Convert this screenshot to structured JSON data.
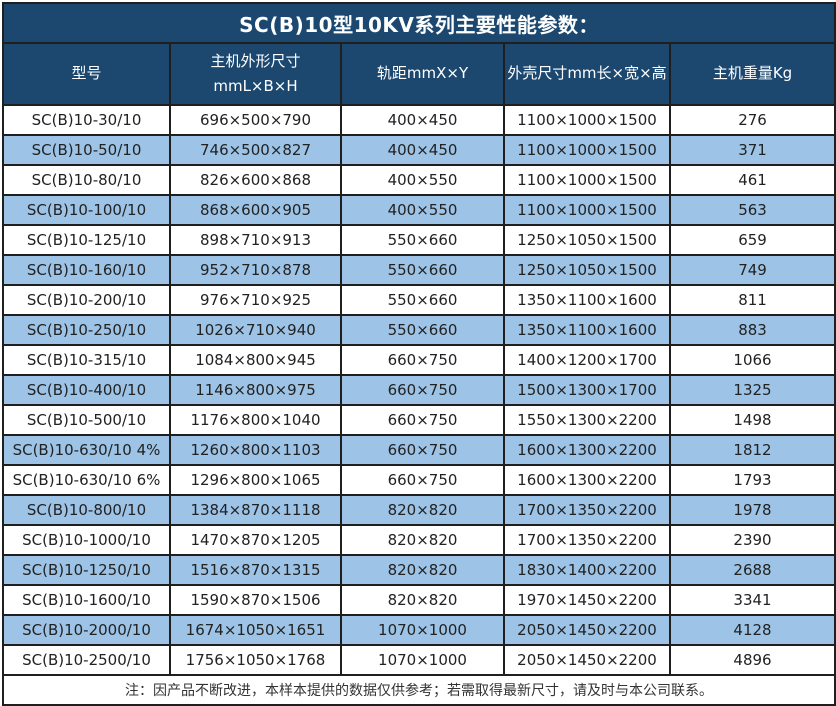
{
  "title": "SC(B)10型10KV系列主要性能参数：",
  "colors": {
    "header_bg": "#1C4870",
    "row_alt_bg": "#9DC3E6",
    "border": "#1F1F1F",
    "header_text": "#FFFFFF",
    "body_text": "#222222"
  },
  "table": {
    "headers": {
      "model": "型号",
      "dims_line1": "主机外形尺寸",
      "dims_line2": "mmL×B×H",
      "rail": "轨距mmX×Y",
      "shell": "外壳尺寸mm长×宽×高",
      "weight": "主机重量Kg"
    },
    "rows": [
      [
        "SC(B)10-30/10",
        "696×500×790",
        "400×450",
        "1100×1000×1500",
        "276"
      ],
      [
        "SC(B)10-50/10",
        "746×500×827",
        "400×450",
        "1100×1000×1500",
        "371"
      ],
      [
        "SC(B)10-80/10",
        "826×600×868",
        "400×550",
        "1100×1000×1500",
        "461"
      ],
      [
        "SC(B)10-100/10",
        "868×600×905",
        "400×550",
        "1100×1000×1500",
        "563"
      ],
      [
        "SC(B)10-125/10",
        "898×710×913",
        "550×660",
        "1250×1050×1500",
        "659"
      ],
      [
        "SC(B)10-160/10",
        "952×710×878",
        "550×660",
        "1250×1050×1500",
        "749"
      ],
      [
        "SC(B)10-200/10",
        "976×710×925",
        "550×660",
        "1350×1100×1600",
        "811"
      ],
      [
        "SC(B)10-250/10",
        "1026×710×940",
        "550×660",
        "1350×1100×1600",
        "883"
      ],
      [
        "SC(B)10-315/10",
        "1084×800×945",
        "660×750",
        "1400×1200×1700",
        "1066"
      ],
      [
        "SC(B)10-400/10",
        "1146×800×975",
        "660×750",
        "1500×1300×1700",
        "1325"
      ],
      [
        "SC(B)10-500/10",
        "1176×800×1040",
        "660×750",
        "1550×1300×2200",
        "1498"
      ],
      [
        "SC(B)10-630/10 4%",
        "1260×800×1103",
        "660×750",
        "1600×1300×2200",
        "1812"
      ],
      [
        "SC(B)10-630/10 6%",
        "1296×800×1065",
        "660×750",
        "1600×1300×2200",
        "1793"
      ],
      [
        "SC(B)10-800/10",
        "1384×870×1118",
        "820×820",
        "1700×1350×2200",
        "1978"
      ],
      [
        "SC(B)10-1000/10",
        "1470×870×1205",
        "820×820",
        "1700×1350×2200",
        "2390"
      ],
      [
        "SC(B)10-1250/10",
        "1516×870×1315",
        "820×820",
        "1830×1400×2200",
        "2688"
      ],
      [
        "SC(B)10-1600/10",
        "1590×870×1506",
        "820×820",
        "1970×1450×2200",
        "3341"
      ],
      [
        "SC(B)10-2000/10",
        "1674×1050×1651",
        "1070×1000",
        "2050×1450×2200",
        "4128"
      ],
      [
        "SC(B)10-2500/10",
        "1756×1050×1768",
        "1070×1000",
        "2050×1450×2200",
        "4896"
      ]
    ]
  },
  "footnote": "注：因产品不断改进，本样本提供的数据仅供参考；若需取得最新尺寸，请及时与本公司联系。"
}
